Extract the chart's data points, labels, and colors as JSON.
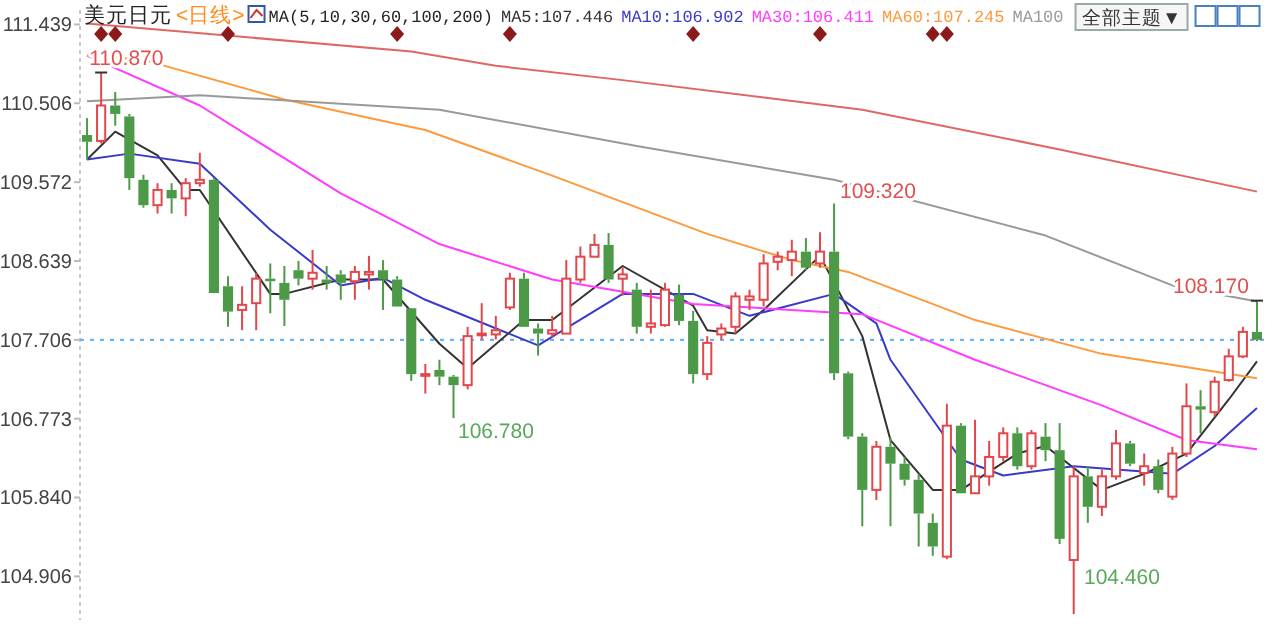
{
  "chart_data": {
    "type": "candlestick",
    "title": "美元日元",
    "subtitle": "<日线>",
    "categories": [
      null,
      null,
      null,
      null,
      null,
      null,
      null,
      null,
      null,
      null,
      null,
      null,
      null,
      null,
      null,
      null,
      null,
      null,
      null,
      null,
      null,
      null,
      null,
      null,
      null,
      null,
      null,
      null,
      null,
      null,
      null,
      null,
      null,
      null,
      null,
      null,
      null,
      null,
      null,
      null,
      null,
      null,
      null,
      null,
      null,
      null,
      null,
      null,
      null,
      null,
      null,
      null,
      null,
      null,
      null,
      null,
      null,
      null,
      null,
      null,
      null,
      null,
      null,
      null,
      null,
      null,
      null,
      null,
      null,
      null,
      null,
      null,
      null,
      null,
      null,
      null,
      null,
      null,
      null,
      null,
      null,
      null,
      null,
      null
    ],
    "ohlc": [
      [
        110.13,
        110.33,
        109.84,
        110.05
      ],
      [
        110.06,
        110.87,
        110.03,
        110.48
      ],
      [
        110.48,
        110.64,
        110.24,
        110.38
      ],
      [
        110.35,
        110.38,
        109.48,
        109.62
      ],
      [
        109.6,
        109.66,
        109.27,
        109.3
      ],
      [
        109.3,
        109.56,
        109.2,
        109.48
      ],
      [
        109.48,
        109.56,
        109.2,
        109.38
      ],
      [
        109.38,
        109.62,
        109.17,
        109.56
      ],
      [
        109.56,
        109.92,
        109.52,
        109.6
      ],
      [
        109.6,
        109.62,
        108.26,
        108.26
      ],
      [
        108.34,
        108.46,
        107.86,
        108.04
      ],
      [
        108.06,
        108.34,
        107.82,
        108.12
      ],
      [
        108.14,
        108.5,
        107.82,
        108.43
      ],
      [
        108.43,
        108.61,
        108.02,
        108.4
      ],
      [
        108.38,
        108.58,
        107.87,
        108.18
      ],
      [
        108.53,
        108.64,
        108.35,
        108.43
      ],
      [
        108.43,
        108.77,
        108.3,
        108.5
      ],
      [
        108.42,
        108.58,
        108.3,
        108.38
      ],
      [
        108.48,
        108.53,
        108.18,
        108.38
      ],
      [
        108.4,
        108.58,
        108.18,
        108.51
      ],
      [
        108.48,
        108.7,
        108.3,
        108.51
      ],
      [
        108.53,
        108.65,
        108.06,
        108.42
      ],
      [
        108.42,
        108.46,
        108.1,
        108.1
      ],
      [
        108.08,
        108.08,
        107.22,
        107.3
      ],
      [
        107.28,
        107.42,
        107.07,
        107.3
      ],
      [
        107.35,
        107.47,
        107.17,
        107.27
      ],
      [
        107.27,
        107.29,
        106.78,
        107.17
      ],
      [
        107.17,
        107.86,
        107.12,
        107.75
      ],
      [
        107.76,
        108.14,
        107.71,
        107.78
      ],
      [
        107.77,
        107.99,
        107.71,
        107.82
      ],
      [
        108.09,
        108.5,
        108.06,
        108.43
      ],
      [
        108.43,
        108.5,
        107.86,
        107.86
      ],
      [
        107.84,
        107.9,
        107.52,
        107.78
      ],
      [
        107.78,
        107.99,
        107.74,
        107.82
      ],
      [
        107.78,
        108.65,
        107.78,
        108.43
      ],
      [
        108.42,
        108.81,
        108.38,
        108.69
      ],
      [
        108.69,
        108.96,
        108.69,
        108.83
      ],
      [
        108.83,
        108.97,
        108.38,
        108.42
      ],
      [
        108.43,
        108.56,
        108.23,
        108.48
      ],
      [
        108.3,
        108.38,
        107.78,
        107.86
      ],
      [
        107.86,
        108.3,
        107.78,
        107.9
      ],
      [
        107.88,
        108.38,
        107.86,
        108.3
      ],
      [
        108.24,
        108.36,
        107.88,
        107.93
      ],
      [
        107.93,
        108.05,
        107.19,
        107.3
      ],
      [
        107.3,
        107.75,
        107.23,
        107.67
      ],
      [
        107.77,
        107.9,
        107.71,
        107.84
      ],
      [
        107.86,
        108.27,
        107.78,
        108.22
      ],
      [
        108.18,
        108.3,
        108.06,
        108.22
      ],
      [
        108.18,
        108.72,
        108.1,
        108.61
      ],
      [
        108.63,
        108.75,
        108.53,
        108.69
      ],
      [
        108.65,
        108.89,
        108.46,
        108.75
      ],
      [
        108.75,
        108.91,
        108.53,
        108.56
      ],
      [
        108.61,
        108.98,
        108.56,
        108.75
      ],
      [
        108.75,
        109.32,
        107.23,
        107.31
      ],
      [
        107.31,
        107.33,
        106.53,
        106.56
      ],
      [
        106.56,
        106.6,
        105.5,
        105.93
      ],
      [
        105.93,
        106.51,
        105.81,
        106.44
      ],
      [
        106.44,
        106.55,
        105.5,
        106.24
      ],
      [
        106.24,
        106.32,
        105.98,
        106.05
      ],
      [
        106.05,
        106.12,
        105.26,
        105.65
      ],
      [
        105.54,
        105.65,
        105.15,
        105.26
      ],
      [
        105.14,
        106.95,
        105.11,
        106.69
      ],
      [
        106.69,
        106.72,
        105.89,
        105.89
      ],
      [
        105.89,
        106.76,
        105.89,
        106.09
      ],
      [
        106.09,
        106.51,
        105.98,
        106.32
      ],
      [
        106.32,
        106.67,
        106.27,
        106.6
      ],
      [
        106.6,
        106.67,
        106.17,
        106.21
      ],
      [
        106.21,
        106.64,
        106.17,
        106.6
      ],
      [
        106.56,
        106.72,
        106.27,
        106.4
      ],
      [
        106.4,
        106.72,
        105.29,
        105.35
      ],
      [
        105.1,
        106.21,
        104.46,
        106.09
      ],
      [
        106.09,
        106.21,
        105.54,
        105.73
      ],
      [
        105.73,
        106.17,
        105.62,
        106.09
      ],
      [
        106.09,
        106.64,
        106.05,
        106.48
      ],
      [
        106.48,
        106.51,
        106.21,
        106.24
      ],
      [
        106.13,
        106.36,
        105.98,
        106.21
      ],
      [
        106.21,
        106.29,
        105.89,
        105.93
      ],
      [
        105.85,
        106.44,
        105.81,
        106.36
      ],
      [
        106.36,
        107.19,
        106.32,
        106.92
      ],
      [
        106.92,
        107.11,
        106.6,
        106.88
      ],
      [
        106.85,
        107.27,
        106.8,
        107.21
      ],
      [
        107.23,
        107.6,
        107.21,
        107.51
      ],
      [
        107.51,
        107.86,
        107.49,
        107.8
      ],
      [
        107.8,
        108.17,
        107.69,
        107.706
      ]
    ],
    "series": [
      {
        "type": "line",
        "name": "MA5:107.446",
        "color": "#333333",
        "values": [
          109.84,
          null,
          110.17,
          null,
          null,
          109.89,
          null,
          109.48,
          109.48,
          null,
          null,
          null,
          null,
          108.25,
          108.25,
          null,
          null,
          null,
          108.42,
          null,
          null,
          108.42,
          null,
          null,
          null,
          107.66,
          null,
          107.37,
          null,
          null,
          null,
          107.94,
          null,
          107.94,
          null,
          null,
          null,
          null,
          108.58,
          null,
          null,
          null,
          null,
          108.11,
          107.82,
          null,
          107.78,
          null,
          108.06,
          null,
          null,
          null,
          108.7,
          null,
          null,
          107.75,
          null,
          106.52,
          null,
          null,
          105.93,
          null,
          105.93,
          null,
          null,
          null,
          106.36,
          null,
          106.45,
          null,
          null,
          null,
          105.93,
          null,
          null,
          106.12,
          null,
          null,
          106.36,
          null,
          null,
          107.0,
          null,
          107.45
        ]
      },
      {
        "type": "line",
        "name": "MA10:106.902",
        "color": "#3a3ac8",
        "values": [
          109.84,
          null,
          null,
          109.91,
          null,
          null,
          null,
          null,
          109.79,
          null,
          null,
          null,
          null,
          109.01,
          null,
          null,
          null,
          null,
          108.35,
          null,
          null,
          108.44,
          null,
          null,
          108.18,
          null,
          null,
          null,
          null,
          null,
          null,
          null,
          107.64,
          null,
          null,
          null,
          null,
          null,
          108.25,
          null,
          null,
          null,
          null,
          108.25,
          null,
          null,
          null,
          107.99,
          null,
          null,
          null,
          null,
          null,
          108.25,
          null,
          null,
          107.9,
          107.47,
          null,
          null,
          null,
          null,
          106.29,
          null,
          null,
          106.1,
          null,
          null,
          null,
          null,
          106.21,
          null,
          null,
          null,
          null,
          null,
          null,
          106.12,
          null,
          null,
          106.45,
          null,
          null,
          106.9
        ]
      },
      {
        "type": "line",
        "name": "MA30:106.411",
        "color": "#ff3cff",
        "values": [
          111.07,
          null,
          null,
          null,
          null,
          null,
          null,
          null,
          110.48,
          null,
          null,
          null,
          null,
          null,
          null,
          null,
          null,
          null,
          109.44,
          null,
          null,
          null,
          null,
          null,
          null,
          108.84,
          null,
          null,
          null,
          null,
          null,
          null,
          null,
          108.42,
          null,
          null,
          null,
          null,
          null,
          null,
          null,
          null,
          null,
          108.13,
          null,
          null,
          null,
          null,
          null,
          null,
          null,
          null,
          null,
          null,
          null,
          108.01,
          null,
          null,
          null,
          null,
          null,
          null,
          null,
          107.47,
          null,
          null,
          null,
          null,
          null,
          null,
          null,
          null,
          106.93,
          null,
          null,
          null,
          null,
          null,
          106.52,
          null,
          null,
          null,
          null,
          106.41
        ]
      },
      {
        "type": "line",
        "name": "MA60:107.245",
        "color": "#ff9a3c",
        "values": [
          111.07,
          null,
          null,
          null,
          111.02,
          null,
          null,
          null,
          null,
          null,
          null,
          null,
          null,
          null,
          110.55,
          null,
          null,
          null,
          null,
          null,
          null,
          null,
          110.26,
          null,
          110.19,
          null,
          null,
          null,
          null,
          null,
          null,
          null,
          null,
          109.65,
          null,
          null,
          null,
          null,
          null,
          null,
          null,
          null,
          null,
          null,
          108.96,
          null,
          null,
          null,
          null,
          null,
          108.65,
          null,
          null,
          null,
          108.51,
          null,
          null,
          null,
          null,
          null,
          null,
          null,
          null,
          107.94,
          null,
          null,
          null,
          null,
          null,
          null,
          null,
          null,
          107.54,
          null,
          null,
          null,
          null,
          null,
          null,
          null,
          null,
          null,
          null,
          107.25
        ]
      },
      {
        "type": "line",
        "name": "MA100",
        "color": "#999999",
        "values": [
          110.53,
          null,
          null,
          null,
          null,
          null,
          null,
          null,
          110.6,
          null,
          null,
          null,
          null,
          null,
          null,
          null,
          null,
          null,
          null,
          null,
          null,
          null,
          null,
          null,
          null,
          110.43,
          null,
          null,
          null,
          null,
          null,
          null,
          null,
          null,
          null,
          null,
          null,
          null,
          null,
          110.0,
          null,
          null,
          null,
          null,
          null,
          null,
          null,
          null,
          null,
          null,
          null,
          null,
          null,
          109.6,
          null,
          null,
          null,
          null,
          null,
          null,
          null,
          null,
          null,
          null,
          null,
          null,
          null,
          null,
          108.94,
          null,
          null,
          null,
          null,
          null,
          null,
          null,
          null,
          108.35,
          null,
          null,
          null,
          null,
          null,
          108.16
        ]
      },
      {
        "type": "line",
        "color": "#e06666",
        "values": [
          111.45,
          null,
          null,
          null,
          null,
          null,
          null,
          null,
          null,
          null,
          null,
          null,
          null,
          null,
          null,
          null,
          null,
          null,
          null,
          null,
          null,
          null,
          null,
          111.12,
          null,
          null,
          null,
          null,
          null,
          110.95,
          null,
          null,
          null,
          null,
          null,
          null,
          null,
          null,
          110.78,
          null,
          null,
          null,
          null,
          null,
          null,
          null,
          null,
          null,
          null,
          null,
          null,
          null,
          null,
          null,
          null,
          110.43,
          null,
          null,
          null,
          null,
          null,
          null,
          null,
          null,
          null,
          null,
          null,
          null,
          null,
          109.96,
          null,
          null,
          null,
          null,
          null,
          null,
          null,
          null,
          null,
          null,
          null,
          null,
          null,
          109.46
        ]
      }
    ],
    "ylim": [
      104.39,
      111.61
    ],
    "yticks": [
      104.906,
      {
        "value": 105.84,
        "label": "105.840"
      },
      106.773,
      107.706,
      108.639,
      109.572,
      110.506,
      111.439
    ],
    "ref_lines": [
      {
        "axis": "y",
        "value": 107.706,
        "color": "#66b3ff",
        "line_style": "dotted"
      }
    ],
    "legend": "top right",
    "annotations": [
      "MA(5,10,30,60,100,200)",
      "全部主题▼",
      "106.780",
      "109.320",
      "104.460",
      {
        "text": "110.870",
        "y": 110.87
      },
      {
        "text": "108.170",
        "y": 108.17
      }
    ]
  }
}
